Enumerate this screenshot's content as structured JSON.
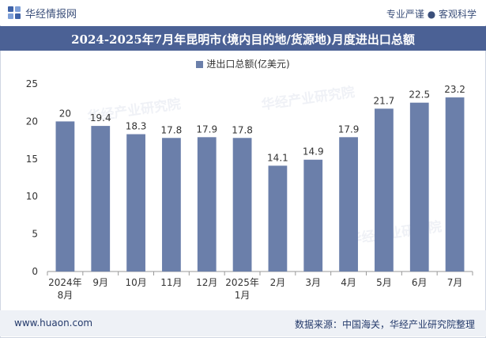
{
  "header": {
    "brand": "华经情报网",
    "tagline": "专业严谨 ● 客观科学"
  },
  "chart_data": {
    "type": "bar",
    "title": "2024-2025年7月年昆明市(境内目的地/货源地)月度进出口总额",
    "categories": [
      "2024年\n8月",
      "9月",
      "10月",
      "11月",
      "12月",
      "2025年\n1月",
      "2月",
      "3月",
      "4月",
      "5月",
      "6月",
      "7月"
    ],
    "series": [
      {
        "name": "进出口总额(亿美元)",
        "values": [
          20,
          19.4,
          18.3,
          17.8,
          17.9,
          17.8,
          14.1,
          14.9,
          17.9,
          21.7,
          22.5,
          23.2
        ],
        "color": "#6b7faa"
      }
    ],
    "ylim": [
      0,
      25
    ],
    "yticks": [
      0,
      5,
      10,
      15,
      20,
      25
    ],
    "xlabel": "",
    "ylabel": "",
    "legend": "top-center",
    "grid": false
  },
  "footer": {
    "site": "www.huaon.com",
    "source": "数据来源：中国海关，华经产业研究院整理"
  },
  "watermark": "华经产业研究院"
}
